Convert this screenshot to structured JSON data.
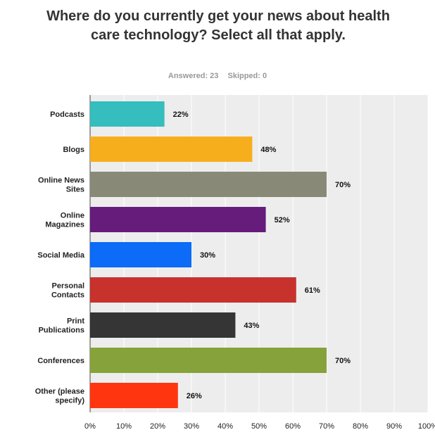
{
  "survey": {
    "question": "Where do you currently get your news about health care technology? Select all that apply.",
    "answered": "Answered: 23",
    "skipped": "Skipped: 0"
  },
  "chart_data": {
    "type": "bar",
    "orientation": "horizontal",
    "title": "Where do you currently get your news about health care technology? Select all that apply.",
    "categories": [
      [
        "Podcasts"
      ],
      [
        "Blogs"
      ],
      [
        "Online News",
        "Sites"
      ],
      [
        "Online",
        "Magazines"
      ],
      [
        "Social Media"
      ],
      [
        "Personal",
        "Contacts"
      ],
      [
        "Print",
        "Publications"
      ],
      [
        "Conferences"
      ],
      [
        "Other (please",
        "specify)"
      ]
    ],
    "values": [
      22,
      48,
      70,
      52,
      30,
      61,
      43,
      70,
      26
    ],
    "value_labels": [
      "22%",
      "48%",
      "70%",
      "52%",
      "30%",
      "61%",
      "43%",
      "70%",
      "26%"
    ],
    "colors": [
      "#36BDBD",
      "#F7AE1D",
      "#888977",
      "#651C7A",
      "#0C6BF7",
      "#C8322D",
      "#353535",
      "#86A23B",
      "#FF3510"
    ],
    "xlim": [
      0,
      100
    ],
    "xticks": [
      "0%",
      "10%",
      "20%",
      "30%",
      "40%",
      "50%",
      "60%",
      "70%",
      "80%",
      "90%",
      "100%"
    ],
    "grid": true
  }
}
